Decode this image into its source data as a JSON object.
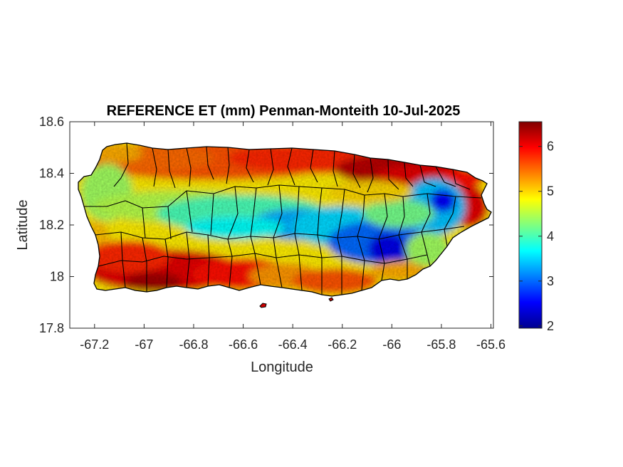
{
  "chart_data": {
    "type": "heatmap",
    "title": "REFERENCE ET (mm) Penman-Monteith 10-Jul-2025",
    "xlabel": "Longitude",
    "ylabel": "Latitude",
    "xlim": [
      -67.3,
      -65.59
    ],
    "ylim": [
      17.8,
      18.6
    ],
    "xticks": [
      -67.2,
      -67,
      -66.8,
      -66.6,
      -66.4,
      -66.2,
      -66,
      -65.8,
      -65.6
    ],
    "xtick_labels": [
      "-67.2",
      "-67",
      "-66.8",
      "-66.6",
      "-66.4",
      "-66.2",
      "-66",
      "-65.8",
      "-65.6"
    ],
    "yticks": [
      17.8,
      18,
      18.2,
      18.4,
      18.6
    ],
    "ytick_labels": [
      "17.8",
      "18",
      "18.2",
      "18.4",
      "18.6"
    ],
    "colorbar": {
      "colormap": "jet",
      "range": [
        1.95,
        6.55
      ],
      "ticks": [
        2,
        3,
        4,
        5,
        6
      ],
      "tick_labels": [
        "2",
        "3",
        "4",
        "5",
        "6"
      ]
    },
    "value_field_notes": {
      "north_coast": 5.8,
      "northeast_coast": 6.4,
      "south_coast": 6.2,
      "west_coast": 4.5,
      "central_cordillera": 3.6,
      "east_interior_min": 2.3,
      "northeast_interior_min": 2.6
    },
    "grid": false
  }
}
